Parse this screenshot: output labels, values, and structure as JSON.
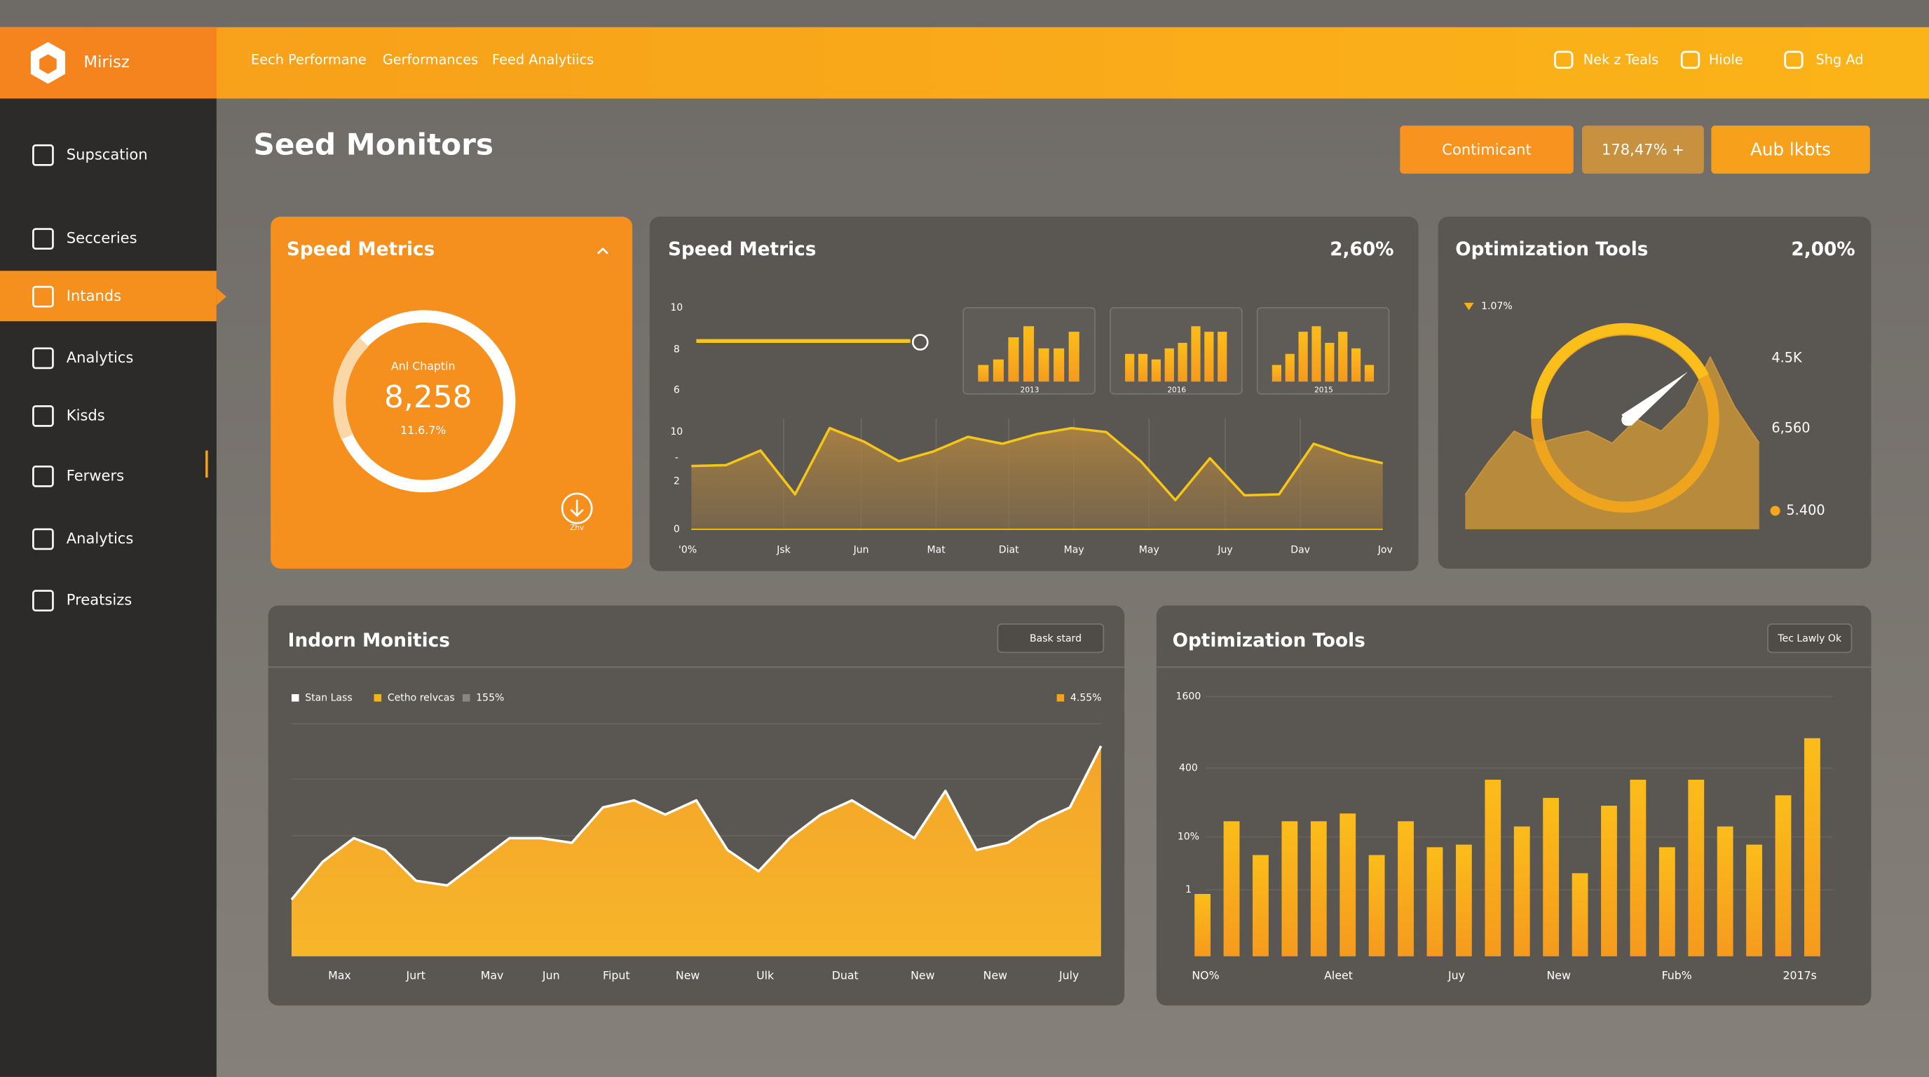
{
  "header": {
    "brand": "Mirisz",
    "nav": [
      "Eech Performane",
      "Gerformances",
      "Feed Analytiics"
    ],
    "actions": [
      "Nek z Teals",
      "Hiole",
      "Shg Ad"
    ]
  },
  "sidebar": {
    "items": [
      "Supscation",
      "Secceries",
      "Intands",
      "Analytics",
      "Kisds",
      "Ferwers",
      "Analytics",
      "Preatsizs"
    ],
    "active": 2
  },
  "page_title": "Seed Monitors",
  "toolbar": [
    "Contimicant",
    "178,47% +",
    "Aub lkbts"
  ],
  "cards": [
    {
      "title": "Speed Metrics",
      "label": "Anl Chaptin",
      "value": "8,258",
      "sub": "11.6.7%",
      "foot": "Zhv"
    },
    {
      "title": "Speed Metrics",
      "value": "2,60%",
      "y_labels": [
        "10",
        "8",
        "6",
        "10",
        "-",
        "2",
        "0"
      ],
      "x_labels": [
        "'0%",
        "Jsk",
        "Jun",
        "Mat",
        "Diat",
        "May",
        "May",
        "Juy",
        "Dav",
        "Jov"
      ],
      "values": [
        6.5,
        6.6,
        8.1,
        3.6,
        10.4,
        9,
        7,
        8,
        9.5,
        8.8,
        9.8,
        10.4,
        10,
        7,
        3,
        7.3,
        3.5,
        3.6,
        8.8,
        7.6,
        6.8
      ],
      "ylim": [
        0,
        10
      ],
      "color": "#f5c518",
      "minis": [
        {
          "label": "2013",
          "values": [
            3,
            4,
            8,
            10,
            6,
            6,
            9
          ]
        },
        {
          "label": "2016",
          "values": [
            5,
            5,
            4,
            6,
            7,
            10,
            9,
            9
          ]
        },
        {
          "label": "2015",
          "values": [
            3,
            5,
            9,
            10,
            7,
            9,
            6,
            3
          ]
        }
      ]
    },
    {
      "title": "Optimization Tools",
      "value": "2,00%",
      "badge": "1.07%",
      "labels": [
        "4.5K",
        "6,560",
        "5.400"
      ],
      "values": [
        20,
        40,
        57,
        50,
        54,
        57,
        50,
        64,
        57,
        71,
        100,
        71,
        50
      ],
      "ylim": [
        0,
        100
      ],
      "color": "#f5b21b"
    },
    {
      "title": "Indorn Monitics",
      "dropdown": "Bask stard",
      "legend": [
        "Stan Lass",
        "Cetho relvcas",
        "155%"
      ],
      "legend_right": "4.55%",
      "x_labels": [
        "Max",
        "Jurt",
        "Mav",
        "Jun",
        "Fiput",
        "New",
        "Ulk",
        "Duat",
        "New",
        "New",
        "July"
      ],
      "values": [
        24,
        40,
        50,
        45,
        32,
        30,
        40,
        50,
        50,
        48,
        63,
        66,
        60,
        66,
        45,
        36,
        50,
        60,
        66,
        58,
        50,
        70,
        45,
        48,
        57,
        63,
        89
      ],
      "ylim": [
        0,
        100
      ],
      "color": "#f7a823"
    },
    {
      "title": "Optimization Tools",
      "button": "Tec Lawly Ok",
      "y_labels": [
        "1600",
        "400",
        "10%",
        "1"
      ],
      "x_labels": [
        "NO%",
        "Aleet",
        "Juy",
        "New",
        "Fub%",
        "2017s"
      ],
      "values": [
        24,
        52,
        39,
        52,
        52,
        55,
        39,
        52,
        42,
        43,
        68,
        50,
        61,
        32,
        58,
        68,
        42,
        68,
        50,
        43,
        62,
        84
      ],
      "ylim": [
        0,
        100
      ],
      "color": "#f7b21c"
    }
  ]
}
